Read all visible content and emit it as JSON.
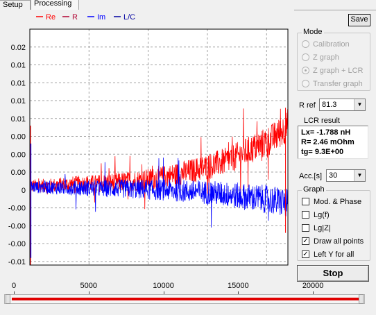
{
  "tabs": [
    {
      "label": "Setup",
      "active": false
    },
    {
      "label": "Processing",
      "active": true
    }
  ],
  "toolbar": {
    "save_label": "Save"
  },
  "mode": {
    "title": "Mode",
    "options": [
      {
        "label": "Calibration",
        "selected": false,
        "enabled": false
      },
      {
        "label": "Z graph",
        "selected": false,
        "enabled": false
      },
      {
        "label": "Z graph + LCR",
        "selected": true,
        "enabled": false
      },
      {
        "label": "Transfer graph",
        "selected": false,
        "enabled": false
      }
    ]
  },
  "rref": {
    "label": "R ref",
    "value": "81.3"
  },
  "lcr": {
    "title": "LCR result",
    "lines": [
      "Lx= -1.788 nH",
      "R= 2.46 mOhm",
      "tg= 9.3E+00"
    ]
  },
  "acc": {
    "label": "Acc.[s]",
    "value": "30"
  },
  "graph": {
    "title": "Graph",
    "options": [
      {
        "label": "Mod. & Phase",
        "checked": false
      },
      {
        "label": "Lg(f)",
        "checked": false
      },
      {
        "label": "Lg|Z|",
        "checked": false
      },
      {
        "label": "Draw all points",
        "checked": true
      },
      {
        "label": "Left Y for all",
        "checked": true
      }
    ]
  },
  "stop_label": "Stop",
  "bottom_scale": {
    "ticks": [
      "0",
      "5000",
      "10000",
      "15000",
      "20000"
    ],
    "tick_values": [
      0,
      5000,
      10000,
      15000,
      20000
    ],
    "max": 22500
  },
  "colors": {
    "re": "#ff0000",
    "r": "#b00030",
    "im": "#0000ff",
    "lc": "#0000a0",
    "grid": "#a0a0a0",
    "slider": "#e00000"
  },
  "chart_data": {
    "type": "line",
    "legend": [
      {
        "name": "Re",
        "color": "#ff0000"
      },
      {
        "name": "R",
        "color": "#b00030"
      },
      {
        "name": "Im",
        "color": "#0000ff"
      },
      {
        "name": "L/C",
        "color": "#0000a0"
      }
    ],
    "xlim": [
      0,
      21800
    ],
    "ylim": [
      -0.0105,
      0.0225
    ],
    "x_ticks": [
      5000,
      10000,
      15000,
      20000
    ],
    "x_tick_labels": [
      "5000",
      "10000",
      "15000",
      "20000"
    ],
    "y_ticks": [
      0.02,
      0.0175,
      0.015,
      0.0125,
      0.01,
      0.0075,
      0.005,
      0.0025,
      0.0,
      -0.0025,
      -0.005,
      -0.0075,
      -0.01
    ],
    "y_tick_labels": [
      "0.02",
      "0.01",
      "0.01",
      "0.01",
      "0.01",
      "0.00",
      "0.00",
      "0.00",
      "0",
      "-0.00",
      "-0.00",
      "-0.00",
      "-0.01"
    ],
    "grid": true,
    "legend_position": "top",
    "series": [
      {
        "name": "Re",
        "color": "#ff0000",
        "x": [
          0,
          500,
          1500,
          2500,
          3500,
          4500,
          5500,
          6500,
          7500,
          8500,
          9500,
          10500,
          11500,
          12500,
          13500,
          14500,
          15500,
          16500,
          17500,
          18500,
          19500,
          20500,
          21000,
          21500,
          21800
        ],
        "y": [
          0.0005,
          0.0006,
          0.0006,
          0.0007,
          0.0008,
          0.0009,
          0.0009,
          0.001,
          0.0011,
          0.0012,
          0.0014,
          0.0016,
          0.0019,
          0.0022,
          0.0026,
          0.003,
          0.0035,
          0.004,
          0.0047,
          0.0055,
          0.0063,
          0.0072,
          0.0078,
          0.0085,
          0.0092
        ],
        "noise": 0.0015
      },
      {
        "name": "Im",
        "color": "#0000ff",
        "x": [
          0,
          500,
          1500,
          2500,
          3500,
          4500,
          5500,
          6500,
          7500,
          8500,
          9500,
          10500,
          11500,
          12500,
          13500,
          14500,
          15500,
          16500,
          17500,
          18500,
          19500,
          20500,
          21000,
          21500,
          21800
        ],
        "y": [
          0.0005,
          0.0004,
          0.0004,
          0.0003,
          0.0003,
          0.0003,
          0.0002,
          0.0002,
          0.0002,
          0.0001,
          0.0001,
          0.0,
          0.0,
          -0.0001,
          -0.0002,
          -0.0003,
          -0.0004,
          -0.0006,
          -0.0008,
          -0.001,
          -0.0012,
          -0.0014,
          -0.0016,
          -0.0018,
          -0.002
        ],
        "noise": 0.0014
      }
    ]
  }
}
